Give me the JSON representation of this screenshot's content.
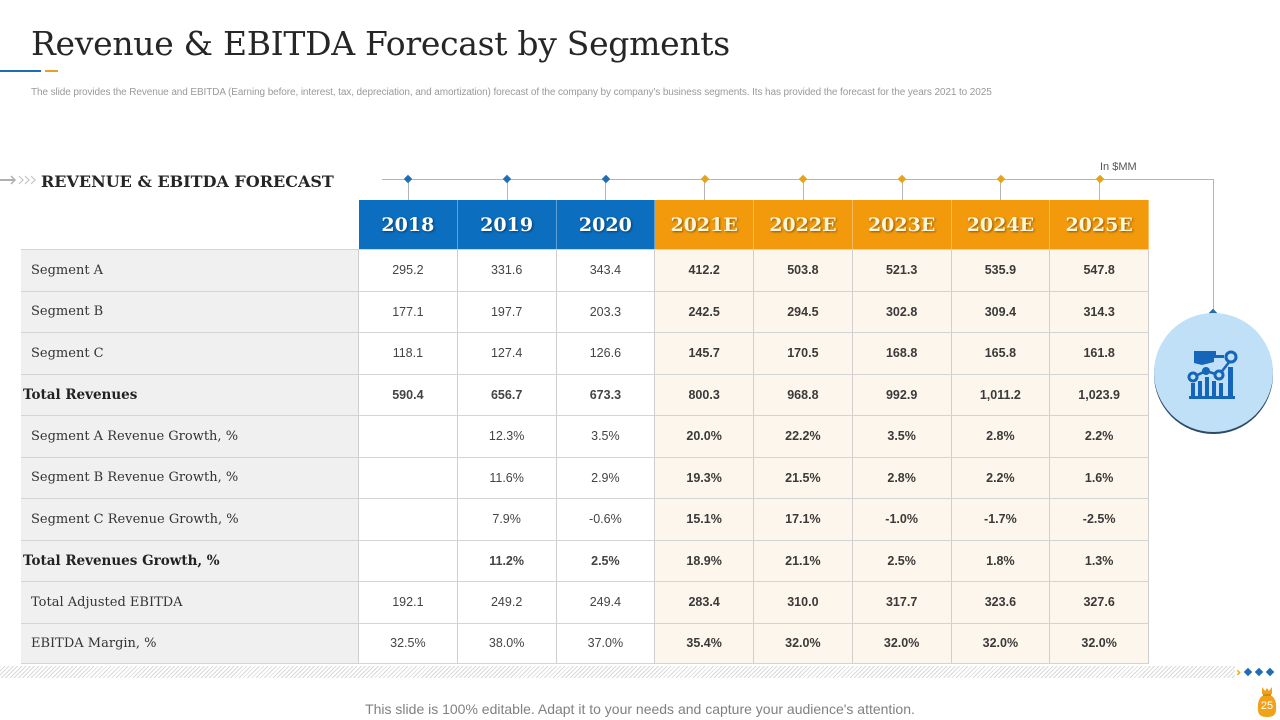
{
  "slide": {
    "title": "Revenue & EBITDA Forecast by Segments",
    "subtitle": "The slide provides the Revenue and EBITDA  (Earning before, interest, tax, depreciation, and amortization) forecast of the company by company's business segments. Its has provided the  forecast for the years 2021 to 2025",
    "section_title": "REVENUE & EBITDA FORECAST",
    "section_arrow": "⟹››",
    "unit_label": "In $MM",
    "footer": "This slide is 100% editable. Adapt it to your needs and capture your audience's attention.",
    "page_number": "25"
  },
  "colors": {
    "actual_header": "#0b6ebf",
    "estimate_header": "#f39a0c",
    "estimate_cell": "#fdf6ec",
    "label_cell": "#f0f0f0",
    "accent_blue": "#1f6eb3",
    "accent_gold": "#e6a21a"
  },
  "icons": {
    "circle_icon": "hand-pointing-chart-icon",
    "stripe_end": "chevron-diamonds-icon",
    "page_badge": "money-bag-icon"
  },
  "table": {
    "columns": [
      {
        "label": "2018",
        "type": "actual"
      },
      {
        "label": "2019",
        "type": "actual"
      },
      {
        "label": "2020",
        "type": "actual"
      },
      {
        "label": "2021E",
        "type": "est"
      },
      {
        "label": "2022E",
        "type": "est"
      },
      {
        "label": "2023E",
        "type": "est"
      },
      {
        "label": "2024E",
        "type": "est"
      },
      {
        "label": "2025E",
        "type": "est"
      }
    ],
    "rows": [
      {
        "label": "Segment A",
        "bold": false,
        "values": [
          "295.2",
          "331.6",
          "343.4",
          "412.2",
          "503.8",
          "521.3",
          "535.9",
          "547.8"
        ]
      },
      {
        "label": "Segment B",
        "bold": false,
        "values": [
          "177.1",
          "197.7",
          "203.3",
          "242.5",
          "294.5",
          "302.8",
          "309.4",
          "314.3"
        ]
      },
      {
        "label": "Segment C",
        "bold": false,
        "values": [
          "118.1",
          "127.4",
          "126.6",
          "145.7",
          "170.5",
          "168.8",
          "165.8",
          "161.8"
        ]
      },
      {
        "label": "Total Revenues",
        "bold": true,
        "values": [
          "590.4",
          "656.7",
          "673.3",
          "800.3",
          "968.8",
          "992.9",
          "1,011.2",
          "1,023.9"
        ]
      },
      {
        "label": "Segment A Revenue Growth, %",
        "bold": false,
        "values": [
          "",
          "12.3%",
          "3.5%",
          "20.0%",
          "22.2%",
          "3.5%",
          "2.8%",
          "2.2%"
        ]
      },
      {
        "label": "Segment B Revenue Growth, %",
        "bold": false,
        "values": [
          "",
          "11.6%",
          "2.9%",
          "19.3%",
          "21.5%",
          "2.8%",
          "2.2%",
          "1.6%"
        ]
      },
      {
        "label": "Segment C Revenue Growth, %",
        "bold": false,
        "values": [
          "",
          "7.9%",
          "-0.6%",
          "15.1%",
          "17.1%",
          "-1.0%",
          "-1.7%",
          "-2.5%"
        ]
      },
      {
        "label": "Total Revenues Growth, %",
        "bold": true,
        "values": [
          "",
          "11.2%",
          "2.5%",
          "18.9%",
          "21.1%",
          "2.5%",
          "1.8%",
          "1.3%"
        ]
      },
      {
        "label": "Total Adjusted EBITDA",
        "bold": false,
        "values": [
          "192.1",
          "249.2",
          "249.4",
          "283.4",
          "310.0",
          "317.7",
          "323.6",
          "327.6"
        ]
      },
      {
        "label": "EBITDA Margin, %",
        "bold": false,
        "values": [
          "32.5%",
          "38.0%",
          "37.0%",
          "35.4%",
          "32.0%",
          "32.0%",
          "32.0%",
          "32.0%"
        ]
      }
    ]
  }
}
